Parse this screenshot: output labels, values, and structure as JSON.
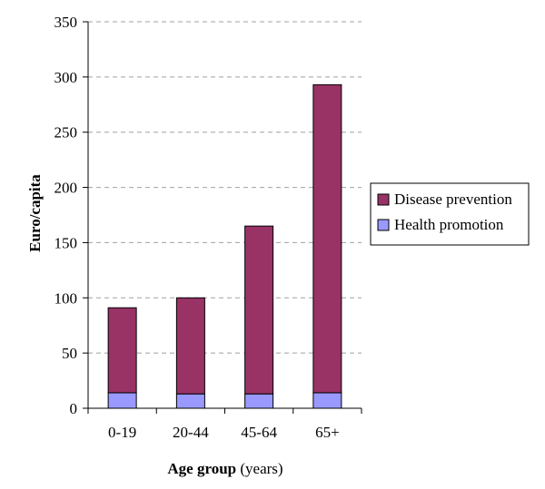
{
  "chart_data": {
    "type": "bar",
    "stacked": true,
    "categories": [
      "0-19",
      "20-44",
      "45-64",
      "65+"
    ],
    "series": [
      {
        "name": "Health promotion",
        "values": [
          14,
          13,
          13,
          14
        ],
        "color": "#9999ff"
      },
      {
        "name": "Disease prevention",
        "values": [
          77,
          87,
          152,
          279
        ],
        "color": "#993366"
      }
    ],
    "title": "",
    "xlabel_bold": "Age group",
    "xlabel_rest": " (years)",
    "ylabel": "Euro/capita",
    "ylim": [
      0,
      350
    ],
    "yticks": [
      0,
      50,
      100,
      150,
      200,
      250,
      300,
      350
    ],
    "grid": "horizontal-dashed",
    "legend_position": "right",
    "legend_order": [
      "Disease prevention",
      "Health promotion"
    ]
  }
}
